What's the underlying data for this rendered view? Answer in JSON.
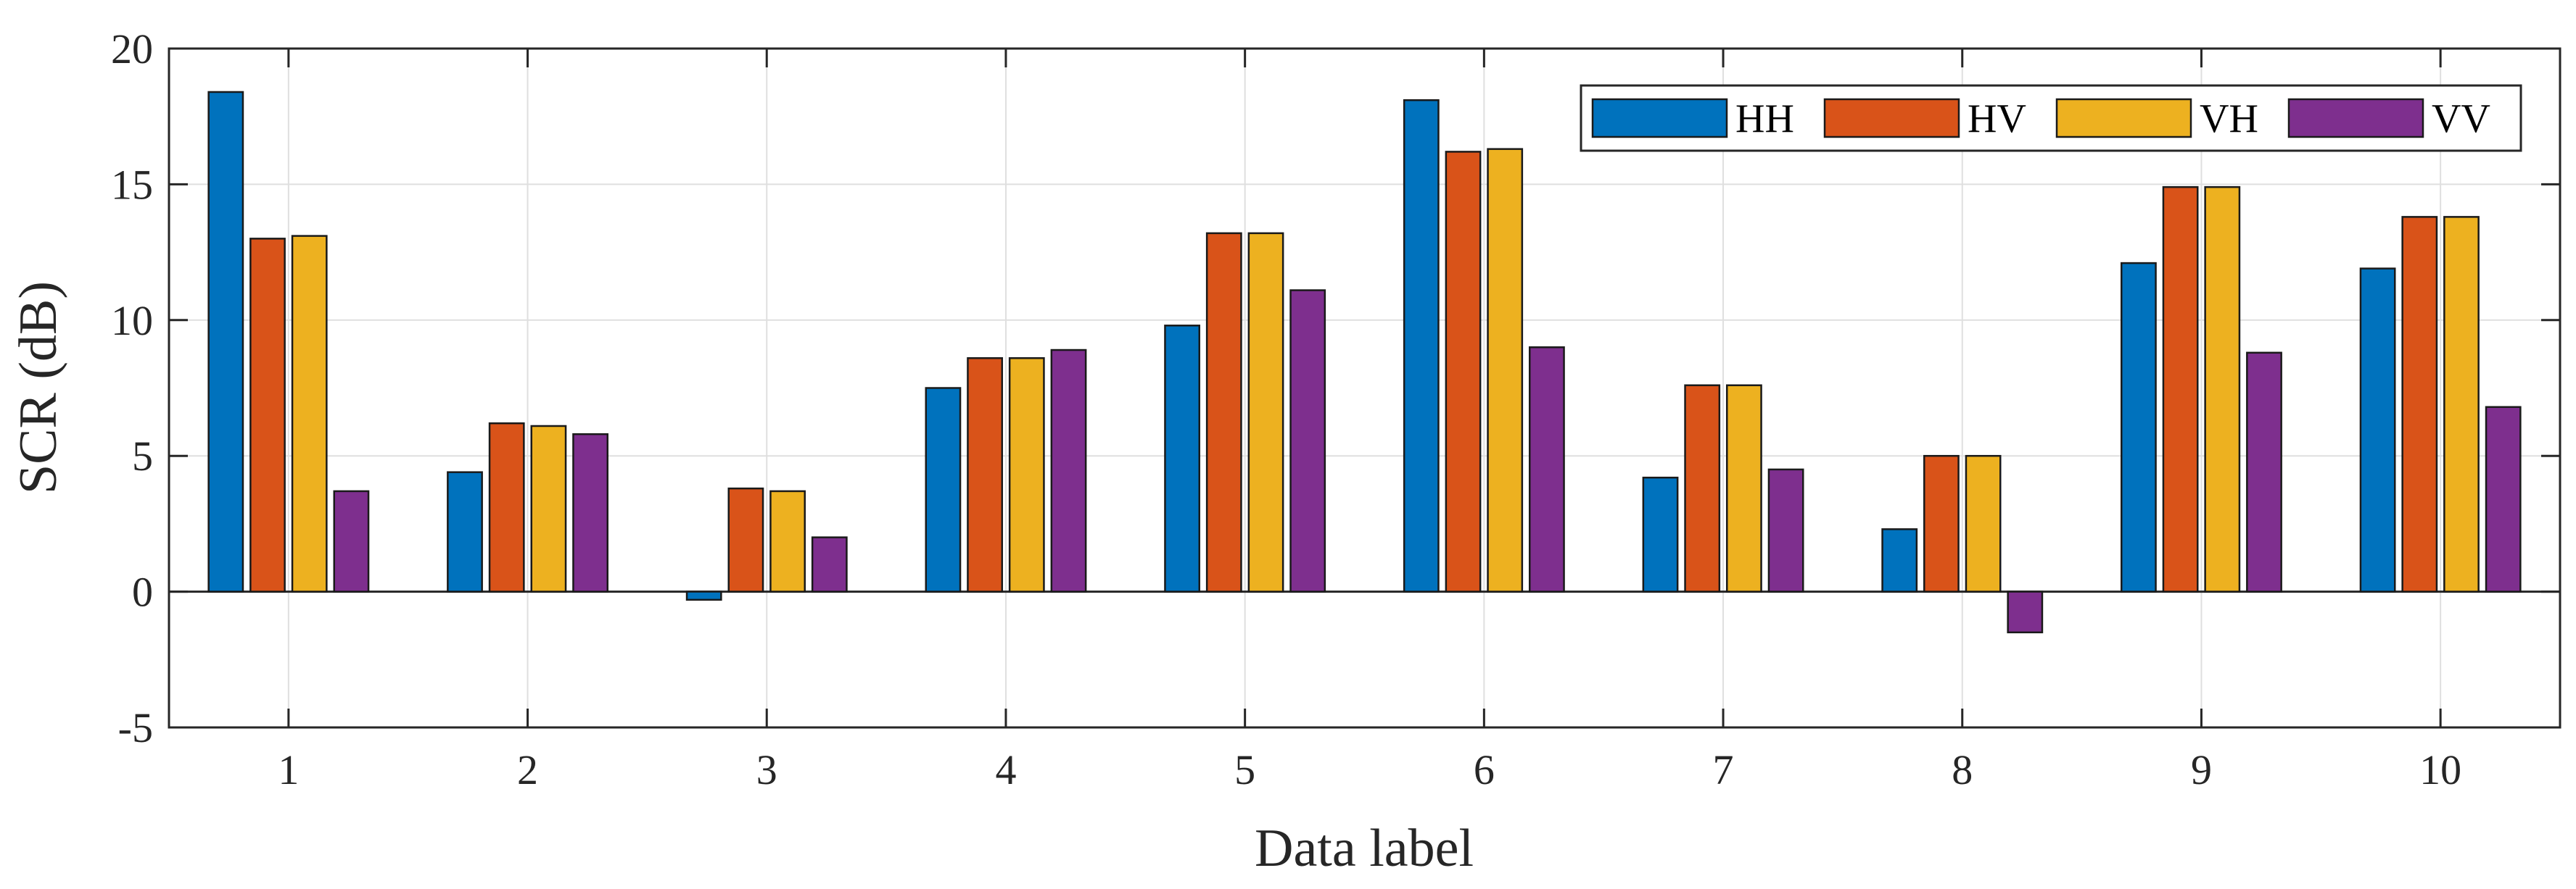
{
  "chart_data": {
    "type": "bar",
    "title": "",
    "xlabel": "Data label",
    "ylabel": "SCR (dB)",
    "categories": [
      "1",
      "2",
      "3",
      "4",
      "5",
      "6",
      "7",
      "8",
      "9",
      "10"
    ],
    "ylim": [
      -5,
      20
    ],
    "yticks": [
      -5,
      0,
      5,
      10,
      15,
      20
    ],
    "ytick_labels": [
      "-5",
      "0",
      "5",
      "10",
      "15",
      "20"
    ],
    "grid": true,
    "legend_position": "top-right",
    "legend_orientation": "horizontal",
    "series": [
      {
        "name": "HH",
        "color": "#0072BD",
        "values": [
          18.4,
          4.4,
          -0.3,
          7.5,
          9.8,
          18.1,
          4.2,
          2.3,
          12.1,
          11.9
        ]
      },
      {
        "name": "HV",
        "color": "#D95319",
        "values": [
          13.0,
          6.2,
          3.8,
          8.6,
          13.2,
          16.2,
          7.6,
          5.0,
          14.9,
          13.8
        ]
      },
      {
        "name": "VH",
        "color": "#EDB120",
        "values": [
          13.1,
          6.1,
          3.7,
          8.6,
          13.2,
          16.3,
          7.6,
          5.0,
          14.9,
          13.8
        ]
      },
      {
        "name": "VV",
        "color": "#7E2F8E",
        "values": [
          3.7,
          5.8,
          2.0,
          8.9,
          11.1,
          9.0,
          4.5,
          -1.5,
          8.8,
          6.8
        ]
      }
    ]
  }
}
